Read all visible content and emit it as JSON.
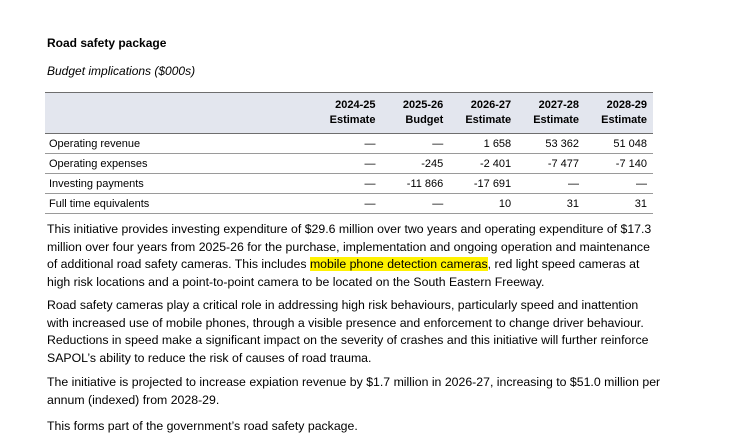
{
  "title": "Road safety package",
  "subtitle": "Budget implications ($000s)",
  "colors": {
    "header_bg": "#e3e6ee",
    "highlight": "#fff200"
  },
  "table": {
    "columns": [
      {
        "year": "2024-25",
        "kind": "Estimate"
      },
      {
        "year": "2025-26",
        "kind": "Budget"
      },
      {
        "year": "2026-27",
        "kind": "Estimate"
      },
      {
        "year": "2027-28",
        "kind": "Estimate"
      },
      {
        "year": "2028-29",
        "kind": "Estimate"
      }
    ],
    "rows": [
      {
        "label": "Operating revenue",
        "values": [
          "—",
          "—",
          "1 658",
          "53 362",
          "51 048"
        ]
      },
      {
        "label": "Operating expenses",
        "values": [
          "—",
          "-245",
          "-2 401",
          "-7 477",
          "-7 140"
        ]
      },
      {
        "label": "Investing payments",
        "values": [
          "—",
          "-11 866",
          "-17 691",
          "—",
          "—"
        ]
      },
      {
        "label": "Full time equivalents",
        "values": [
          "—",
          "—",
          "10",
          "31",
          "31"
        ]
      }
    ]
  },
  "paragraphs": {
    "p1_before": "This initiative provides investing expenditure of $29.6 million over two years and operating expenditure of $17.3 million over four years from 2025-26 for the purchase, implementation and ongoing operation and maintenance of additional road  safety cameras. This includes ",
    "p1_highlight": "mobile phone detection cameras",
    "p1_after": ", red light speed cameras at high risk locations and a point-to-point camera to be located on the South Eastern Freeway.",
    "p2": "Road safety cameras play a critical role in addressing high risk behaviours, particularly speed and inattention with increased use of mobile phones, through a visible presence and enforcement to change driver behaviour. Reductions in speed make a significant impact on the severity of crashes and this initiative will further reinforce SAPOL’s ability to reduce the risk of causes of road trauma.",
    "p3": "The initiative is projected to increase expiation revenue by $1.7 million in 2026-27, increasing to $51.0 million per annum (indexed) from 2028-29.",
    "p4": "This forms part of the government’s road safety package."
  }
}
